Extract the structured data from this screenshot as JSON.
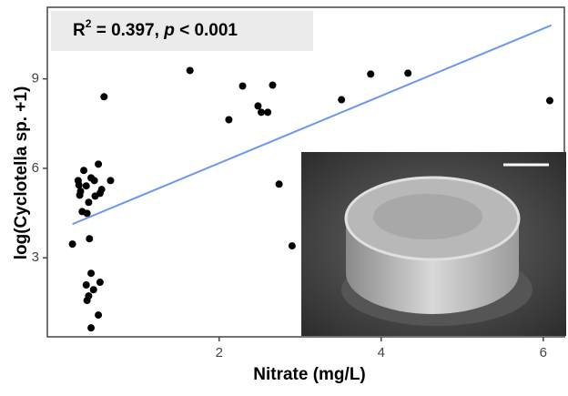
{
  "chart_data": {
    "type": "scatter",
    "x_label": "Nitrate (mg/L)",
    "y_label": "log(Cyclotella sp. +1)",
    "annotation": {
      "parts": [
        "R",
        "2",
        " = 0.397, ",
        "p",
        " < 0.001"
      ]
    },
    "series": [
      {
        "color": "#000000",
        "x": [
          0.19,
          0.33,
          0.26,
          0.27,
          0.29,
          0.42,
          0.51,
          0.46,
          0.36,
          0.28,
          0.31,
          0.37,
          0.55,
          0.47,
          0.53,
          0.66,
          0.39,
          0.4,
          0.42,
          0.53,
          0.36,
          0.45,
          0.39,
          0.37,
          0.51,
          0.42,
          0.58,
          1.64,
          2.12,
          2.29,
          2.66,
          2.48,
          2.52,
          2.6,
          2.74,
          2.9,
          3.51,
          3.87,
          4.33,
          6.08
        ],
        "values": [
          3.46,
          5.93,
          5.59,
          5.44,
          5.23,
          5.68,
          6.14,
          5.59,
          5.41,
          5.1,
          4.55,
          4.49,
          5.29,
          5.07,
          5.16,
          5.59,
          4.86,
          3.64,
          2.48,
          2.18,
          2.09,
          1.93,
          1.72,
          1.57,
          1.08,
          0.65,
          8.4,
          9.28,
          7.63,
          8.76,
          8.79,
          8.09,
          7.88,
          7.88,
          5.47,
          3.4,
          8.3,
          9.16,
          9.19,
          8.27
        ]
      }
    ],
    "fit_line": {
      "color": "#6d97f0",
      "x": [
        0.19,
        6.1
      ],
      "values": [
        4.13,
        10.8
      ]
    },
    "xlim": [
      -0.12,
      6.26
    ],
    "xticks": [
      2,
      4,
      6
    ],
    "ylim": [
      0.35,
      11.4
    ],
    "yticks": [
      3,
      6,
      9
    ]
  }
}
